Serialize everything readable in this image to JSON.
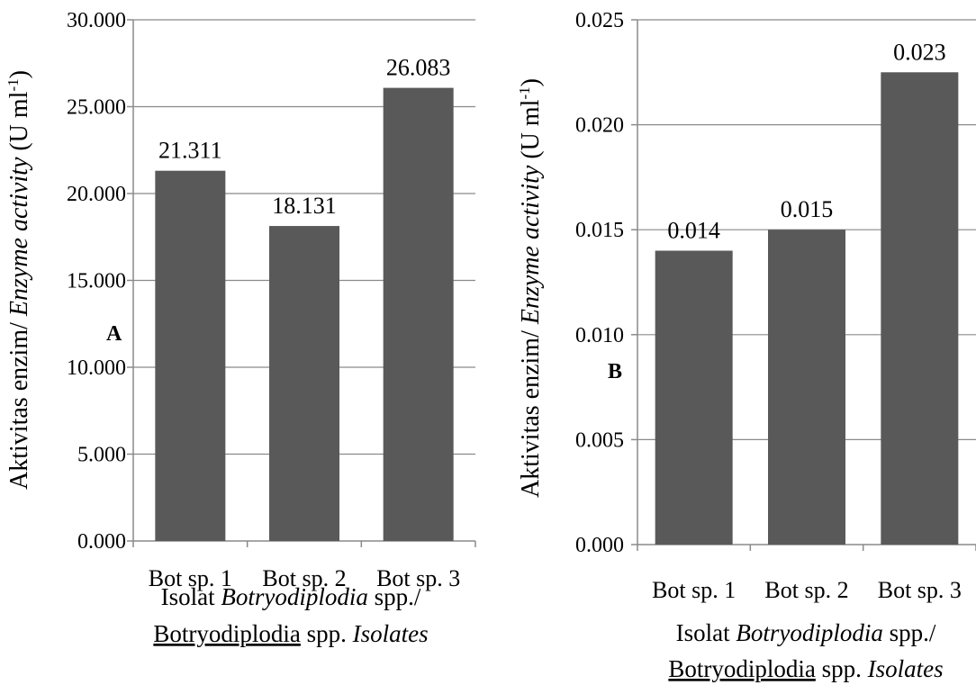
{
  "chart_data": [
    {
      "type": "bar",
      "panel_label": "A",
      "categories": [
        "Bot sp. 1",
        "Bot sp. 2",
        "Bot sp. 3"
      ],
      "values": [
        21.311,
        18.131,
        26.083
      ],
      "value_labels": [
        "21.311",
        "18.131",
        "26.083"
      ],
      "yticks": [
        "0.000",
        "5.000",
        "10.000",
        "15.000",
        "20.000",
        "25.000",
        "30.000"
      ],
      "ylim": [
        0,
        30
      ],
      "ylabel": {
        "part1": "Aktivitas  enzim/ ",
        "part2": "Enzyme  activity",
        "part3": " (U ml",
        "sup": "-1",
        "part4": ")"
      },
      "xlabel": {
        "line1_a": "Isolat ",
        "line1_b": "Botryodiplodia",
        "line1_c": " spp./",
        "line2_a": "Botryodiplodia",
        "line2_b": " spp. ",
        "line2_c": "Isolates"
      },
      "bar_color": "#595959",
      "grid": true
    },
    {
      "type": "bar",
      "panel_label": "B",
      "categories": [
        "Bot sp. 1",
        "Bot sp. 2",
        "Bot sp. 3"
      ],
      "values": [
        0.014,
        0.015,
        0.0225
      ],
      "value_labels": [
        "0.014",
        "0.015",
        "0.023"
      ],
      "yticks": [
        "0.000",
        "0.005",
        "0.010",
        "0.015",
        "0.020",
        "0.025"
      ],
      "ylim": [
        0,
        0.025
      ],
      "ylabel": {
        "part1": "Aktivitas  enzim/ ",
        "part2": "Enzyme  activity",
        "part3": " (U ml",
        "sup": "-1",
        "part4": ")"
      },
      "xlabel": {
        "line1_a": "Isolat ",
        "line1_b": "Botryodiplodia",
        "line1_c": " spp./",
        "line2_a": "Botryodiplodia",
        "line2_b": " spp. ",
        "line2_c": "Isolates"
      },
      "bar_color": "#595959",
      "grid": true
    }
  ]
}
